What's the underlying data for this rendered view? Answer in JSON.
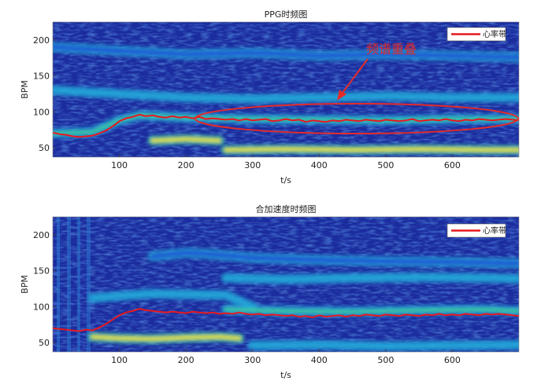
{
  "chart_data": [
    {
      "type": "heatmap",
      "title": "PPG时频图",
      "xlabel": "t/s",
      "ylabel": "BPM",
      "xlim": [
        0,
        700
      ],
      "ylim": [
        37,
        225
      ],
      "xticks": [
        100,
        200,
        300,
        400,
        500,
        600
      ],
      "yticks": [
        50,
        100,
        150,
        200
      ],
      "colormap": [
        "#17208f",
        "#1f4fd6",
        "#21a6d8",
        "#3cc9a0",
        "#e9e23a"
      ],
      "bands": [
        {
          "x": [
            0,
            60,
            100,
            130,
            200,
            300,
            400,
            500,
            600,
            700
          ],
          "y": [
            70,
            72,
            88,
            95,
            92,
            90,
            89,
            88,
            90,
            90
          ],
          "intensity": 0.65
        },
        {
          "x": [
            150,
            200,
            250
          ],
          "y": [
            60,
            62,
            60
          ],
          "intensity": 0.95
        },
        {
          "x": [
            260,
            350,
            450,
            550,
            650,
            700
          ],
          "y": [
            47,
            48,
            47,
            48,
            47,
            47
          ],
          "intensity": 0.9
        },
        {
          "x": [
            0,
            100,
            200,
            300,
            400,
            500,
            600,
            700
          ],
          "y": [
            130,
            125,
            120,
            118,
            120,
            122,
            120,
            120
          ],
          "intensity": 0.45
        },
        {
          "x": [
            0,
            100,
            200,
            300,
            400,
            500,
            600,
            700
          ],
          "y": [
            190,
            185,
            180,
            182,
            178,
            180,
            178,
            176
          ],
          "intensity": 0.35
        }
      ],
      "series": [
        {
          "name": "心率带",
          "color": "#e8191f",
          "x": [
            0,
            10,
            20,
            30,
            40,
            50,
            60,
            70,
            80,
            90,
            100,
            110,
            120,
            130,
            140,
            150,
            160,
            170,
            180,
            190,
            200,
            210,
            220,
            230,
            240,
            250,
            260,
            270,
            280,
            290,
            300,
            310,
            320,
            330,
            340,
            350,
            360,
            370,
            380,
            390,
            400,
            410,
            420,
            430,
            440,
            450,
            460,
            470,
            480,
            490,
            500,
            510,
            520,
            530,
            540,
            550,
            560,
            570,
            580,
            590,
            600,
            610,
            620,
            630,
            640,
            650,
            660,
            670,
            680,
            690,
            700
          ],
          "values": [
            71,
            69,
            68,
            66,
            65,
            66,
            67,
            70,
            74,
            80,
            87,
            91,
            93,
            96,
            94,
            95,
            93,
            92,
            94,
            92,
            93,
            91,
            93,
            90,
            91,
            90,
            89,
            90,
            88,
            90,
            88,
            89,
            90,
            87,
            88,
            90,
            88,
            89,
            86,
            88,
            87,
            86,
            88,
            87,
            89,
            88,
            87,
            89,
            88,
            87,
            89,
            88,
            87,
            88,
            90,
            87,
            88,
            89,
            88,
            90,
            88,
            87,
            89,
            88,
            90,
            89,
            88,
            89,
            90,
            89,
            88
          ]
        }
      ],
      "legend": "top-right",
      "annotation": {
        "text": "频谱重叠",
        "x": 520,
        "y": 197
      }
    },
    {
      "type": "heatmap",
      "title": "合加速度时频图",
      "xlabel": "t/s",
      "ylabel": "BPM",
      "xlim": [
        0,
        700
      ],
      "ylim": [
        37,
        225
      ],
      "xticks": [
        100,
        200,
        300,
        400,
        500,
        600
      ],
      "yticks": [
        50,
        100,
        150,
        200
      ],
      "colormap": [
        "#17208f",
        "#1f4fd6",
        "#21a6d8",
        "#3cc9a0",
        "#e9e23a"
      ],
      "bands": [
        {
          "x": [
            60,
            100,
            150,
            200,
            250,
            280
          ],
          "y": [
            58,
            56,
            55,
            57,
            58,
            56
          ],
          "intensity": 0.95
        },
        {
          "x": [
            60,
            100,
            150,
            200,
            260,
            300
          ],
          "y": [
            112,
            115,
            118,
            117,
            116,
            100
          ],
          "intensity": 0.6
        },
        {
          "x": [
            260,
            350,
            450,
            550,
            650,
            700
          ],
          "y": [
            96,
            94,
            93,
            95,
            96,
            94
          ],
          "intensity": 0.8
        },
        {
          "x": [
            150,
            200,
            250,
            300,
            400,
            500,
            600,
            700
          ],
          "y": [
            170,
            175,
            172,
            168,
            165,
            163,
            162,
            160
          ],
          "intensity": 0.35
        },
        {
          "x": [
            260,
            350,
            450,
            550,
            650,
            700
          ],
          "y": [
            140,
            138,
            140,
            141,
            140,
            139
          ],
          "intensity": 0.45
        },
        {
          "x": [
            300,
            400,
            500,
            600,
            700
          ],
          "y": [
            46,
            47,
            45,
            46,
            47
          ],
          "intensity": 0.55
        }
      ],
      "series": [
        {
          "name": "心率带",
          "color": "#e8191f",
          "x": [
            0,
            10,
            20,
            30,
            40,
            50,
            60,
            70,
            80,
            90,
            100,
            110,
            120,
            130,
            140,
            150,
            160,
            170,
            180,
            190,
            200,
            210,
            220,
            230,
            240,
            250,
            260,
            270,
            280,
            290,
            300,
            310,
            320,
            330,
            340,
            350,
            360,
            370,
            380,
            390,
            400,
            410,
            420,
            430,
            440,
            450,
            460,
            470,
            480,
            490,
            500,
            510,
            520,
            530,
            540,
            550,
            560,
            570,
            580,
            590,
            600,
            610,
            620,
            630,
            640,
            650,
            660,
            670,
            680,
            690,
            700
          ],
          "values": [
            70,
            69,
            68,
            67,
            66,
            68,
            67,
            71,
            76,
            82,
            88,
            92,
            94,
            97,
            95,
            94,
            93,
            92,
            93,
            92,
            91,
            93,
            92,
            91,
            92,
            90,
            91,
            90,
            92,
            90,
            89,
            90,
            88,
            89,
            88,
            87,
            88,
            86,
            87,
            85,
            88,
            86,
            87,
            88,
            86,
            88,
            87,
            89,
            88,
            87,
            89,
            88,
            87,
            89,
            88,
            87,
            89,
            88,
            90,
            88,
            89,
            88,
            90,
            89,
            88,
            90,
            89,
            90,
            89,
            88,
            87
          ]
        }
      ],
      "legend": "top-right"
    }
  ]
}
